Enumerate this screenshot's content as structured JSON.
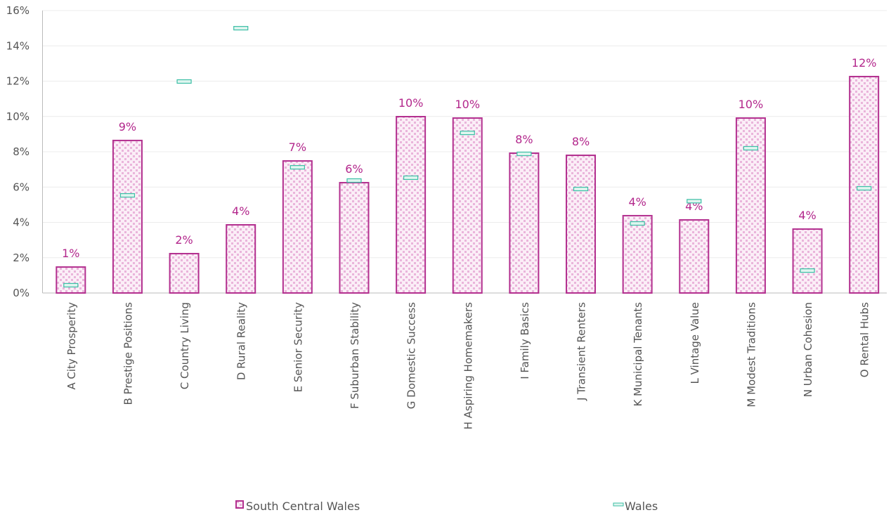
{
  "chart_data": {
    "type": "bar",
    "categories": [
      "A City Prosperity",
      "B Prestige Positions",
      "C Country Living",
      "D Rural Reality",
      "E Senior Security",
      "F Suburban Stability",
      "G Domestic Success",
      "H Aspiring Homemakers",
      "I Family Basics",
      "J Transient Renters",
      "K Municipal Tenants",
      "L Vintage Value",
      "M Modest Traditions",
      "N Urban Cohesion",
      "O Rental Hubs"
    ],
    "series": [
      {
        "name": "South Central Wales",
        "color": "#b3308f",
        "values": [
          1.47,
          8.64,
          2.23,
          3.86,
          7.48,
          6.25,
          9.99,
          9.91,
          7.92,
          7.8,
          4.38,
          4.14,
          9.91,
          3.62,
          12.26
        ],
        "value_labels": [
          "1%",
          "9%",
          "2%",
          "4%",
          "7%",
          "6%",
          "10%",
          "10%",
          "8%",
          "8%",
          "4%",
          "4%",
          "10%",
          "4%",
          "12%"
        ]
      },
      {
        "name": "Wales",
        "color": "#3cbfa6",
        "values": [
          0.44,
          5.53,
          11.98,
          15.0,
          7.12,
          6.37,
          6.53,
          9.07,
          7.88,
          5.89,
          3.94,
          5.2,
          8.2,
          1.27,
          5.93
        ]
      }
    ],
    "ylim": [
      0,
      16
    ],
    "yticks": [
      {
        "value": 0,
        "label": "0%"
      },
      {
        "value": 2,
        "label": "2%"
      },
      {
        "value": 4,
        "label": "4%"
      },
      {
        "value": 6,
        "label": "6%"
      },
      {
        "value": 8,
        "label": "8%"
      },
      {
        "value": 10,
        "label": "10%"
      },
      {
        "value": 12,
        "label": "12%"
      },
      {
        "value": 14,
        "label": "14%"
      },
      {
        "value": 16,
        "label": "16%"
      }
    ],
    "grid": true
  }
}
